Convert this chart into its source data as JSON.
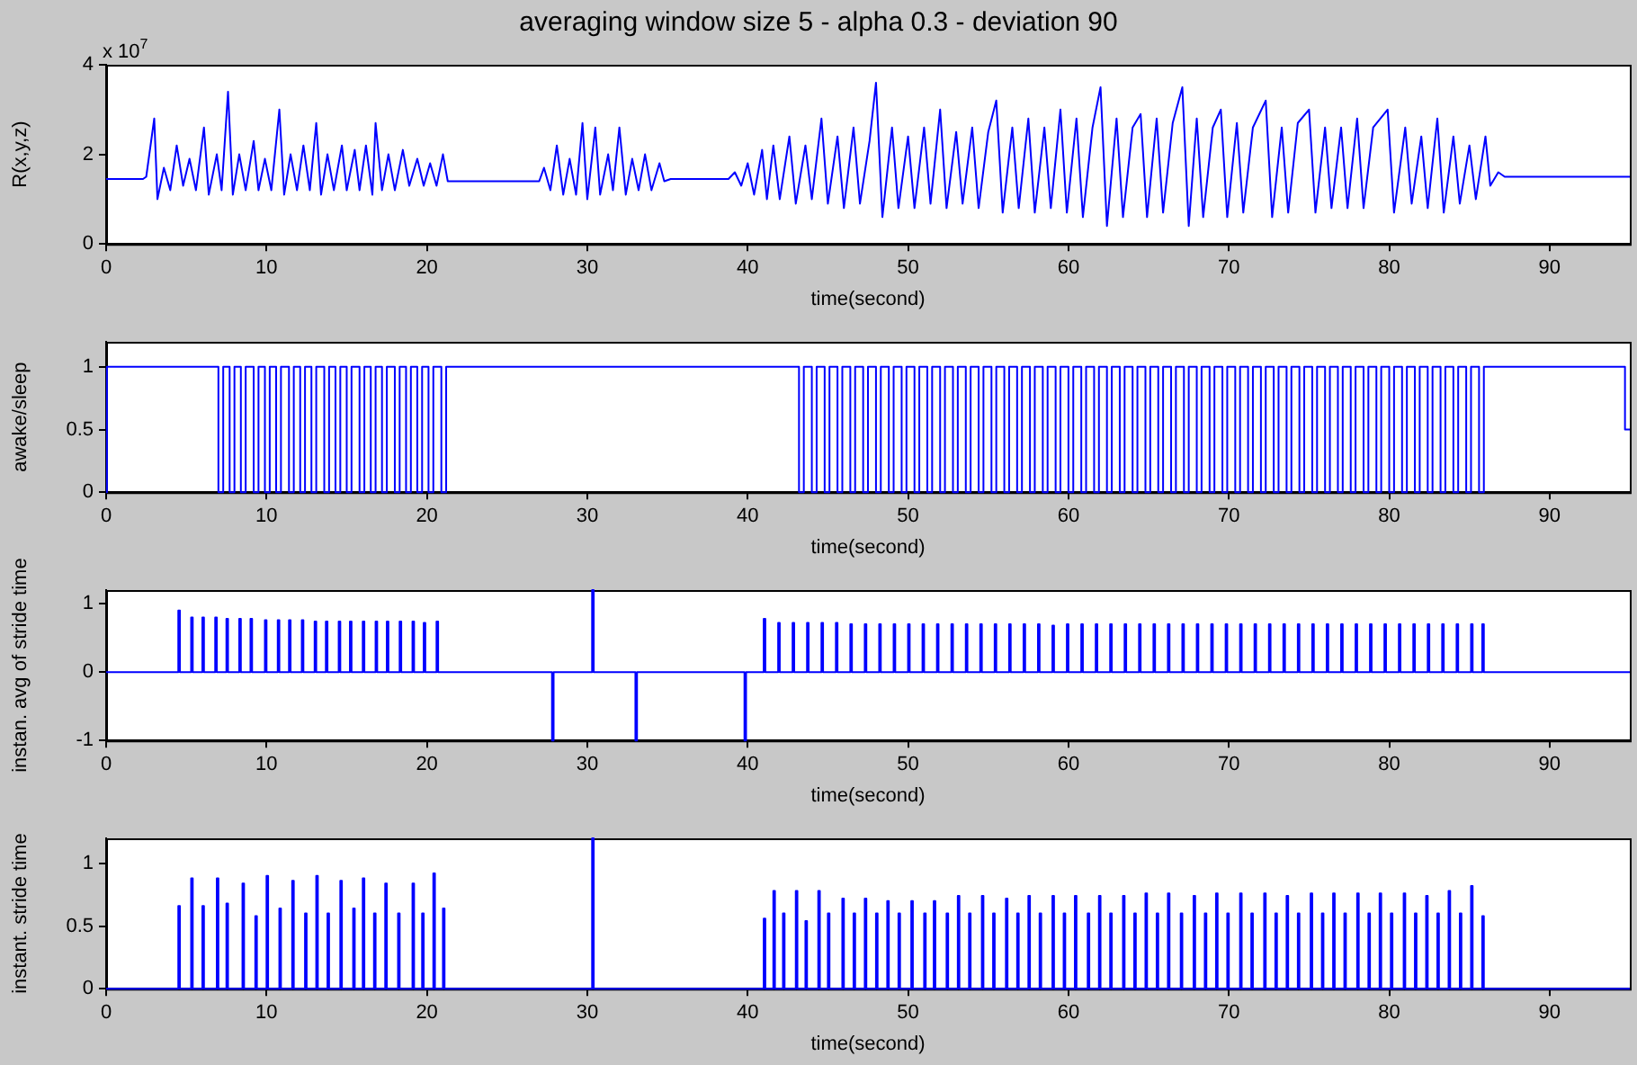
{
  "chart_data": [
    {
      "type": "line",
      "title": "averaging window size 5 - alpha 0.3 - deviation 90",
      "xlabel": "time(second)",
      "ylabel": "R(x,y,z)",
      "annotations": [
        "x 10$^{7}$"
      ],
      "color": "#0000ff",
      "xlim": [
        0,
        95
      ],
      "xticks": [
        0,
        10,
        20,
        30,
        40,
        50,
        60,
        70,
        80,
        90
      ],
      "ylim": [
        0,
        4
      ],
      "yticks": [
        0,
        2,
        4
      ],
      "x": [
        0,
        2.3,
        2.5,
        3.0,
        3.2,
        3.6,
        4.0,
        4.4,
        4.8,
        5.2,
        5.6,
        6.1,
        6.4,
        6.9,
        7.2,
        7.6,
        7.9,
        8.3,
        8.7,
        9.2,
        9.5,
        9.9,
        10.3,
        10.8,
        11.1,
        11.5,
        11.9,
        12.3,
        12.7,
        13.1,
        13.4,
        13.8,
        14.2,
        14.7,
        15.0,
        15.5,
        15.8,
        16.2,
        16.6,
        16.8,
        17.2,
        17.6,
        18.0,
        18.5,
        18.9,
        19.4,
        19.8,
        20.2,
        20.6,
        21.0,
        21.3,
        22,
        27,
        27.3,
        27.7,
        28.1,
        28.5,
        28.9,
        29.3,
        29.7,
        30.0,
        30.5,
        30.8,
        31.3,
        31.6,
        32.0,
        32.4,
        32.8,
        33.2,
        33.6,
        34.0,
        34.5,
        34.8,
        35.2,
        38.8,
        39.2,
        39.6,
        40,
        40.4,
        40.9,
        41.2,
        41.6,
        42.0,
        42.6,
        43.0,
        43.6,
        44.0,
        44.6,
        45.0,
        45.6,
        46.0,
        46.6,
        47.0,
        47.6,
        48.0,
        48.4,
        49.0,
        49.4,
        50.0,
        50.4,
        51.0,
        51.4,
        52.0,
        52.4,
        53.0,
        53.4,
        54.0,
        54.4,
        55.0,
        55.5,
        55.9,
        56.5,
        56.9,
        57.5,
        57.9,
        58.5,
        58.9,
        59.5,
        59.9,
        60.5,
        60.9,
        61.5,
        62.0,
        62.4,
        63.0,
        63.4,
        64.0,
        64.5,
        64.9,
        65.5,
        65.9,
        66.5,
        67.1,
        67.5,
        68.0,
        68.4,
        69.0,
        69.5,
        69.9,
        70.5,
        70.9,
        71.5,
        72.3,
        72.7,
        73.3,
        73.7,
        74.3,
        75.0,
        75.4,
        76.0,
        76.4,
        77.0,
        77.4,
        78.0,
        78.4,
        79.0,
        79.9,
        80.3,
        81.0,
        81.4,
        82.0,
        82.4,
        83.0,
        83.4,
        84.0,
        84.4,
        85.0,
        85.4,
        86.0,
        86.3,
        86.8,
        87.2,
        95
      ],
      "values": [
        1.45,
        1.45,
        1.5,
        2.8,
        1.0,
        1.7,
        1.2,
        2.2,
        1.3,
        1.9,
        1.2,
        2.6,
        1.1,
        2.0,
        1.2,
        3.4,
        1.1,
        2.0,
        1.2,
        2.3,
        1.2,
        1.9,
        1.2,
        3.0,
        1.1,
        2.0,
        1.2,
        2.2,
        1.2,
        2.7,
        1.1,
        2.0,
        1.2,
        2.2,
        1.2,
        2.1,
        1.2,
        2.2,
        1.1,
        2.7,
        1.2,
        2.0,
        1.2,
        2.1,
        1.3,
        1.9,
        1.3,
        1.8,
        1.3,
        2.0,
        1.4,
        1.4,
        1.4,
        1.7,
        1.2,
        2.2,
        1.1,
        1.9,
        1.1,
        2.7,
        1.0,
        2.6,
        1.1,
        2.0,
        1.2,
        2.6,
        1.1,
        1.9,
        1.2,
        2.0,
        1.2,
        1.8,
        1.4,
        1.45,
        1.45,
        1.6,
        1.3,
        1.8,
        1.1,
        2.1,
        1.0,
        2.2,
        1.0,
        2.4,
        0.9,
        2.2,
        1.0,
        2.8,
        0.9,
        2.4,
        0.8,
        2.6,
        0.9,
        2.3,
        3.6,
        0.6,
        2.6,
        0.8,
        2.4,
        0.8,
        2.6,
        0.9,
        3.0,
        0.8,
        2.5,
        0.9,
        2.6,
        0.8,
        2.5,
        3.2,
        0.7,
        2.6,
        0.8,
        2.8,
        0.7,
        2.6,
        0.8,
        3.0,
        0.7,
        2.8,
        0.6,
        2.6,
        3.5,
        0.4,
        2.8,
        0.6,
        2.6,
        2.9,
        0.6,
        2.8,
        0.7,
        2.7,
        3.5,
        0.4,
        2.8,
        0.6,
        2.6,
        3.0,
        0.6,
        2.7,
        0.7,
        2.6,
        3.2,
        0.6,
        2.6,
        0.7,
        2.7,
        3.0,
        0.7,
        2.6,
        0.8,
        2.6,
        0.8,
        2.8,
        0.8,
        2.6,
        3.0,
        0.7,
        2.6,
        0.9,
        2.4,
        0.8,
        2.8,
        0.7,
        2.4,
        0.9,
        2.2,
        1.0,
        2.4,
        1.3,
        1.6,
        1.5,
        1.5
      ]
    },
    {
      "type": "step",
      "xlabel": "time(second)",
      "ylabel": "awake/sleep",
      "color": "#0000ff",
      "xlim": [
        0,
        95
      ],
      "xticks": [
        0,
        10,
        20,
        30,
        40,
        50,
        60,
        70,
        80,
        90
      ],
      "ylim": [
        0,
        1.2
      ],
      "yticks": [
        0,
        0.5,
        1
      ],
      "x": [
        0,
        0.05,
        7.0,
        7.3,
        7.7,
        8.0,
        8.4,
        8.7,
        9.2,
        9.5,
        9.9,
        10.2,
        10.6,
        10.9,
        11.4,
        11.7,
        12.1,
        12.4,
        12.8,
        13.1,
        13.6,
        13.9,
        14.3,
        14.6,
        15.0,
        15.3,
        15.8,
        16.1,
        16.5,
        16.8,
        17.2,
        17.5,
        18.0,
        18.3,
        18.7,
        19.0,
        19.4,
        19.7,
        20.1,
        20.4,
        20.9,
        21.2,
        43.2,
        43.5,
        44.0,
        44.3,
        44.8,
        45.1,
        45.6,
        45.9,
        46.4,
        46.7,
        47.2,
        47.5,
        48.0,
        48.3,
        48.8,
        49.1,
        49.6,
        49.9,
        50.4,
        50.7,
        51.2,
        51.5,
        52.0,
        52.3,
        52.8,
        53.1,
        53.6,
        53.9,
        54.4,
        54.7,
        55.2,
        55.5,
        56.0,
        56.3,
        56.8,
        57.1,
        57.6,
        57.9,
        58.4,
        58.7,
        59.2,
        59.5,
        60.0,
        60.3,
        60.8,
        61.1,
        61.6,
        61.9,
        62.4,
        62.7,
        63.2,
        63.5,
        64.0,
        64.3,
        64.8,
        65.1,
        65.6,
        65.9,
        66.4,
        66.7,
        67.2,
        67.5,
        68.0,
        68.3,
        68.8,
        69.1,
        69.6,
        69.9,
        70.4,
        70.7,
        71.2,
        71.5,
        72.0,
        72.3,
        72.8,
        73.1,
        73.6,
        73.9,
        74.4,
        74.7,
        75.2,
        75.5,
        76.0,
        76.3,
        76.8,
        77.1,
        77.6,
        77.9,
        78.4,
        78.7,
        79.2,
        79.5,
        80.0,
        80.3,
        80.8,
        81.1,
        81.6,
        81.9,
        82.4,
        82.7,
        83.2,
        83.5,
        84.0,
        84.3,
        84.8,
        85.1,
        85.6,
        85.9,
        94.7,
        95
      ],
      "values": [
        0,
        1,
        0,
        1,
        0,
        1,
        0,
        1,
        0,
        1,
        0,
        1,
        0,
        1,
        0,
        1,
        0,
        1,
        0,
        1,
        0,
        1,
        0,
        1,
        0,
        1,
        0,
        1,
        0,
        1,
        0,
        1,
        0,
        1,
        0,
        1,
        0,
        1,
        0,
        1,
        0,
        1,
        0,
        1,
        0,
        1,
        0,
        1,
        0,
        1,
        0,
        1,
        0,
        1,
        0,
        1,
        0,
        1,
        0,
        1,
        0,
        1,
        0,
        1,
        0,
        1,
        0,
        1,
        0,
        1,
        0,
        1,
        0,
        1,
        0,
        1,
        0,
        1,
        0,
        1,
        0,
        1,
        0,
        1,
        0,
        1,
        0,
        1,
        0,
        1,
        0,
        1,
        0,
        1,
        0,
        1,
        0,
        1,
        0,
        1,
        0,
        1,
        0,
        1,
        0,
        1,
        0,
        1,
        0,
        1,
        0,
        1,
        0,
        1,
        0,
        1,
        0,
        1,
        0,
        1,
        0,
        1,
        0,
        1,
        0,
        1,
        0,
        1,
        0,
        1,
        0,
        1,
        0,
        1,
        0,
        1,
        0,
        1,
        0,
        1,
        0,
        1,
        0,
        1,
        0,
        1,
        0,
        1,
        0,
        1,
        0.5,
        0.5
      ]
    },
    {
      "type": "step",
      "xlabel": "time(second)",
      "ylabel": "instan. avg of stride time",
      "color": "#0000ff",
      "xlim": [
        0,
        95
      ],
      "xticks": [
        0,
        10,
        20,
        30,
        40,
        50,
        60,
        70,
        80,
        90
      ],
      "ylim": [
        -1,
        1.2
      ],
      "yticks": [
        -1,
        0,
        1
      ],
      "x": [
        0,
        4.5,
        4.6,
        5.3,
        5.4,
        6.0,
        6.1,
        6.8,
        6.9,
        7.5,
        7.6,
        8.3,
        8.4,
        9.0,
        9.1,
        9.9,
        10.0,
        10.7,
        10.8,
        11.4,
        11.5,
        12.2,
        12.3,
        13.0,
        13.1,
        13.7,
        13.8,
        14.5,
        14.6,
        15.2,
        15.3,
        16.0,
        16.1,
        16.8,
        16.9,
        17.5,
        17.6,
        18.3,
        18.4,
        19.1,
        19.2,
        19.8,
        19.9,
        20.6,
        20.7,
        27.8,
        27.9,
        30.3,
        30.4,
        33.0,
        33.1,
        39.8,
        39.9,
        41.0,
        41.1,
        41.9,
        42.0,
        42.8,
        42.9,
        43.7,
        43.8,
        44.6,
        44.7,
        45.5,
        45.6,
        46.4,
        46.5,
        47.3,
        47.4,
        48.2,
        48.3,
        49.1,
        49.2,
        50.0,
        50.1,
        50.9,
        51.0,
        51.8,
        51.9,
        52.7,
        52.8,
        53.6,
        53.7,
        54.5,
        54.6,
        55.4,
        55.5,
        56.3,
        56.4,
        57.2,
        57.3,
        58.1,
        58.2,
        59.0,
        59.1,
        59.9,
        60.0,
        60.8,
        60.9,
        61.7,
        61.8,
        62.6,
        62.7,
        63.5,
        63.6,
        64.4,
        64.5,
        65.3,
        65.4,
        66.2,
        66.3,
        67.1,
        67.2,
        68.0,
        68.1,
        68.9,
        69.0,
        69.8,
        69.9,
        70.7,
        70.8,
        71.6,
        71.7,
        72.5,
        72.6,
        73.4,
        73.5,
        74.3,
        74.4,
        75.2,
        75.3,
        76.1,
        76.2,
        77.0,
        77.1,
        77.9,
        78.0,
        78.8,
        78.9,
        79.7,
        79.8,
        80.6,
        80.7,
        81.5,
        81.6,
        82.4,
        82.5,
        83.3,
        83.4,
        84.2,
        84.3,
        85.1,
        85.2,
        85.8,
        85.9,
        95
      ],
      "values": [
        0,
        0.9,
        0,
        0.8,
        0,
        0.8,
        0,
        0.8,
        0,
        0.78,
        0,
        0.78,
        0,
        0.78,
        0,
        0.76,
        0,
        0.76,
        0,
        0.76,
        0,
        0.76,
        0,
        0.74,
        0,
        0.74,
        0,
        0.74,
        0,
        0.74,
        0,
        0.74,
        0,
        0.74,
        0,
        0.74,
        0,
        0.74,
        0,
        0.74,
        0,
        0.72,
        0,
        0.74,
        0,
        -1,
        0,
        1.2,
        0,
        -1,
        0,
        -1,
        0,
        0.78,
        0,
        0.72,
        0,
        0.72,
        0,
        0.72,
        0,
        0.72,
        0,
        0.72,
        0,
        0.7,
        0,
        0.7,
        0,
        0.7,
        0,
        0.7,
        0,
        0.7,
        0,
        0.7,
        0,
        0.7,
        0,
        0.7,
        0,
        0.7,
        0,
        0.7,
        0,
        0.7,
        0,
        0.7,
        0,
        0.7,
        0,
        0.7,
        0,
        0.68,
        0,
        0.7,
        0,
        0.7,
        0,
        0.7,
        0,
        0.7,
        0,
        0.7,
        0,
        0.7,
        0,
        0.7,
        0,
        0.7,
        0,
        0.7,
        0,
        0.7,
        0,
        0.7,
        0,
        0.7,
        0,
        0.7,
        0,
        0.7,
        0,
        0.7,
        0,
        0.7,
        0,
        0.7,
        0,
        0.7,
        0,
        0.7,
        0,
        0.7,
        0,
        0.7,
        0,
        0.7,
        0,
        0.7,
        0,
        0.7,
        0,
        0.7,
        0,
        0.7,
        0,
        0.7,
        0,
        0.7,
        0,
        0.7,
        0,
        0.7,
        0,
        0
      ]
    },
    {
      "type": "step",
      "xlabel": "time(second)",
      "ylabel": "instant. stride time",
      "color": "#0000ff",
      "xlim": [
        0,
        95
      ],
      "xticks": [
        0,
        10,
        20,
        30,
        40,
        50,
        60,
        70,
        80,
        90
      ],
      "ylim": [
        0,
        1.2
      ],
      "yticks": [
        0,
        0.5,
        1
      ],
      "x": [
        0,
        4.5,
        4.6,
        5.3,
        5.4,
        6.0,
        6.1,
        6.9,
        7.0,
        7.5,
        7.6,
        8.5,
        8.6,
        9.3,
        9.4,
        10.0,
        10.1,
        10.8,
        10.9,
        11.6,
        11.7,
        12.4,
        12.5,
        13.1,
        13.2,
        13.8,
        13.9,
        14.6,
        14.7,
        15.4,
        15.5,
        16.0,
        16.1,
        16.7,
        16.8,
        17.4,
        17.5,
        18.2,
        18.3,
        19.1,
        19.2,
        19.7,
        19.8,
        20.4,
        20.5,
        21.0,
        21.1,
        30.3,
        30.4,
        41.0,
        41.1,
        41.6,
        41.7,
        42.2,
        42.3,
        43.0,
        43.1,
        43.6,
        43.7,
        44.4,
        44.5,
        45.0,
        45.1,
        45.9,
        46.0,
        46.6,
        46.7,
        47.3,
        47.4,
        48.0,
        48.1,
        48.7,
        48.8,
        49.4,
        49.5,
        50.2,
        50.3,
        51.0,
        51.1,
        51.6,
        51.7,
        52.4,
        52.5,
        53.1,
        53.2,
        53.8,
        53.9,
        54.6,
        54.7,
        55.3,
        55.4,
        56.1,
        56.2,
        56.8,
        56.9,
        57.5,
        57.6,
        58.2,
        58.3,
        59.0,
        59.1,
        59.7,
        59.8,
        60.4,
        60.5,
        61.2,
        61.3,
        61.9,
        62.0,
        62.6,
        62.7,
        63.4,
        63.5,
        64.1,
        64.2,
        64.8,
        64.9,
        65.5,
        65.6,
        66.2,
        66.3,
        67.0,
        67.1,
        67.8,
        67.9,
        68.5,
        68.6,
        69.2,
        69.3,
        69.9,
        70.0,
        70.7,
        70.8,
        71.4,
        71.5,
        72.2,
        72.3,
        72.9,
        73.0,
        73.6,
        73.7,
        74.3,
        74.4,
        75.1,
        75.2,
        75.8,
        75.9,
        76.5,
        76.6,
        77.2,
        77.3,
        78.0,
        78.1,
        78.7,
        78.8,
        79.4,
        79.5,
        80.1,
        80.2,
        80.9,
        81.0,
        81.6,
        81.7,
        82.3,
        82.4,
        83.0,
        83.1,
        83.7,
        83.8,
        84.4,
        84.5,
        85.1,
        85.2,
        85.8,
        85.9,
        95
      ],
      "values": [
        0,
        0.66,
        0,
        0.88,
        0,
        0.66,
        0,
        0.88,
        0,
        0.68,
        0,
        0.84,
        0,
        0.58,
        0,
        0.9,
        0,
        0.64,
        0,
        0.86,
        0,
        0.6,
        0,
        0.9,
        0,
        0.6,
        0,
        0.86,
        0,
        0.64,
        0,
        0.88,
        0,
        0.6,
        0,
        0.84,
        0,
        0.6,
        0,
        0.84,
        0,
        0.6,
        0,
        0.92,
        0,
        0.64,
        0,
        1.2,
        0,
        0.56,
        0,
        0.78,
        0,
        0.6,
        0,
        0.78,
        0,
        0.54,
        0,
        0.78,
        0,
        0.6,
        0,
        0.72,
        0,
        0.6,
        0,
        0.72,
        0,
        0.6,
        0,
        0.7,
        0,
        0.6,
        0,
        0.7,
        0,
        0.6,
        0,
        0.7,
        0,
        0.6,
        0,
        0.74,
        0,
        0.6,
        0,
        0.74,
        0,
        0.6,
        0,
        0.72,
        0,
        0.6,
        0,
        0.74,
        0,
        0.6,
        0,
        0.74,
        0,
        0.6,
        0,
        0.74,
        0,
        0.6,
        0,
        0.74,
        0,
        0.6,
        0,
        0.74,
        0,
        0.6,
        0,
        0.76,
        0,
        0.6,
        0,
        0.76,
        0,
        0.6,
        0,
        0.74,
        0,
        0.6,
        0,
        0.76,
        0,
        0.6,
        0,
        0.76,
        0,
        0.6,
        0,
        0.76,
        0,
        0.6,
        0,
        0.74,
        0,
        0.6,
        0,
        0.76,
        0,
        0.6,
        0,
        0.76,
        0,
        0.6,
        0,
        0.76,
        0,
        0.6,
        0,
        0.76,
        0,
        0.6,
        0,
        0.76,
        0,
        0.6,
        0,
        0.74,
        0,
        0.6,
        0,
        0.78,
        0,
        0.6,
        0,
        0.82,
        0,
        0.58,
        0,
        0
      ]
    }
  ]
}
